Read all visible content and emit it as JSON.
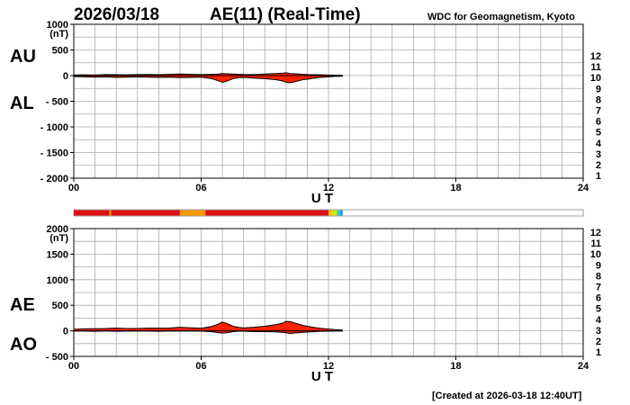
{
  "header": {
    "date": "2026/03/18",
    "title": "AE(11) (Real-Time)",
    "source": "WDC for Geomagnetism, Kyoto"
  },
  "footer": {
    "created": "[Created at 2026-03-18 12:40UT]"
  },
  "colors": {
    "fill": "#ff2200",
    "grid": "#aaaaaa",
    "scale": [
      "#cccccc",
      "#777777",
      "#000000",
      "#cc22cc",
      "#2222cc",
      "#2299ee",
      "#33cccc",
      "#44dd44",
      "#ccee00",
      "#ffcc00",
      "#ff9900",
      "#dd1111",
      "#ee1177"
    ]
  },
  "scale_labels": [
    "1",
    "2",
    "3",
    "4",
    "5",
    "6",
    "7",
    "8",
    "9",
    "10",
    "11",
    "12"
  ],
  "x_ticks": [
    "00",
    "06",
    "12",
    "18",
    "24"
  ],
  "xlabel": "U T",
  "coverage_bar": [
    {
      "start": 0.0,
      "end": 1.68,
      "level": 11
    },
    {
      "start": 1.68,
      "end": 1.76,
      "level": 10
    },
    {
      "start": 1.76,
      "end": 5.0,
      "level": 11
    },
    {
      "start": 5.0,
      "end": 6.2,
      "level": 10
    },
    {
      "start": 6.2,
      "end": 12.0,
      "level": 11
    },
    {
      "start": 12.0,
      "end": 12.2,
      "level": 9
    },
    {
      "start": 12.2,
      "end": 12.4,
      "level": 8
    },
    {
      "start": 12.4,
      "end": 12.55,
      "level": 6
    },
    {
      "start": 12.55,
      "end": 12.67,
      "level": 5
    }
  ],
  "chart_data": [
    {
      "type": "area",
      "panel": "AU/AL",
      "labels": {
        "upper": "AU",
        "lower": "AL"
      },
      "unit": "(nT)",
      "xlabel": "U T",
      "xlim": [
        0,
        24
      ],
      "ylim": [
        -2000,
        1000
      ],
      "yticks": [
        1000,
        500,
        0,
        -500,
        -1000,
        -1500,
        -2000
      ],
      "ytick_labels": [
        "1000",
        "500",
        "0",
        "- 500",
        "- 1000",
        "- 1500",
        "- 2000"
      ],
      "grid": true,
      "x": [
        0,
        0.5,
        1,
        1.5,
        2,
        2.5,
        3,
        3.5,
        4,
        4.5,
        5,
        5.5,
        6,
        6.5,
        6.8,
        7,
        7.2,
        7.5,
        7.8,
        8,
        8.5,
        9,
        9.5,
        9.8,
        10,
        10.2,
        10.4,
        10.6,
        10.8,
        11,
        11.3,
        11.6,
        12,
        12.3,
        12.67
      ],
      "series": [
        {
          "name": "AU",
          "values": [
            10,
            15,
            12,
            20,
            18,
            15,
            20,
            22,
            18,
            25,
            30,
            25,
            20,
            25,
            30,
            40,
            35,
            30,
            25,
            22,
            20,
            30,
            40,
            45,
            55,
            40,
            35,
            30,
            25,
            20,
            18,
            15,
            10,
            8,
            5
          ]
        },
        {
          "name": "AL",
          "values": [
            -20,
            -25,
            -30,
            -25,
            -35,
            -30,
            -25,
            -30,
            -35,
            -30,
            -40,
            -35,
            -30,
            -60,
            -100,
            -130,
            -110,
            -60,
            -40,
            -35,
            -50,
            -60,
            -80,
            -100,
            -130,
            -140,
            -120,
            -100,
            -80,
            -70,
            -50,
            -35,
            -25,
            -15,
            -10
          ]
        }
      ]
    },
    {
      "type": "area",
      "panel": "AE/AO",
      "labels": {
        "upper": "AE",
        "lower": "AO"
      },
      "unit": "(nT)",
      "xlabel": "U T",
      "xlim": [
        0,
        24
      ],
      "ylim": [
        -500,
        2000
      ],
      "yticks": [
        2000,
        1500,
        1000,
        500,
        0,
        -500
      ],
      "ytick_labels": [
        "2000",
        "1500",
        "1000",
        "500",
        "0",
        "- 500"
      ],
      "grid": true,
      "x": [
        0,
        0.5,
        1,
        1.5,
        2,
        2.5,
        3,
        3.5,
        4,
        4.5,
        5,
        5.5,
        6,
        6.5,
        6.8,
        7,
        7.2,
        7.5,
        7.8,
        8,
        8.5,
        9,
        9.5,
        9.8,
        10,
        10.2,
        10.4,
        10.6,
        10.8,
        11,
        11.3,
        11.6,
        12,
        12.3,
        12.67
      ],
      "series": [
        {
          "name": "AE",
          "values": [
            30,
            40,
            42,
            45,
            53,
            45,
            45,
            52,
            53,
            55,
            70,
            60,
            50,
            85,
            130,
            170,
            145,
            90,
            65,
            57,
            70,
            90,
            120,
            145,
            185,
            180,
            155,
            130,
            105,
            90,
            68,
            50,
            35,
            23,
            15
          ]
        },
        {
          "name": "AO",
          "values": [
            -5,
            -5,
            -9,
            -3,
            -9,
            -8,
            -3,
            -4,
            -9,
            -3,
            -5,
            -5,
            -5,
            -18,
            -35,
            -45,
            -38,
            -15,
            -8,
            -7,
            -15,
            -15,
            -20,
            -28,
            -38,
            -50,
            -43,
            -35,
            -28,
            -25,
            -16,
            -10,
            -8,
            -4,
            -3
          ]
        }
      ]
    }
  ]
}
